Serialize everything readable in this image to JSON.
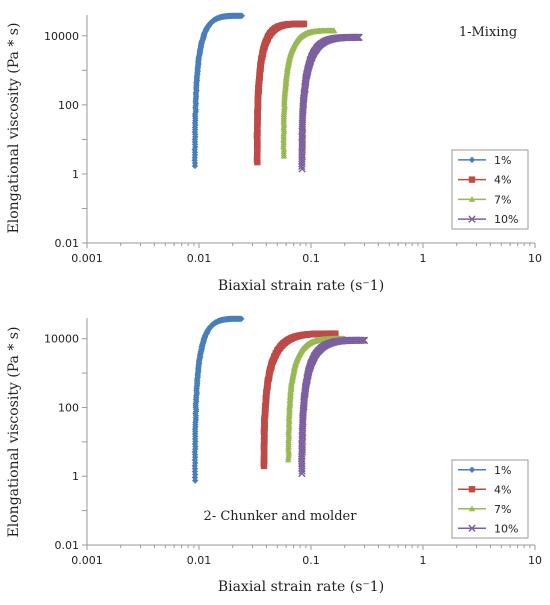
{
  "chart_data": [
    {
      "type": "scatter",
      "annotation": "1-Mixing",
      "xlabel": "Biaxial strain rate (s⁻1)",
      "ylabel": "Elongational viscosity (Pa * s)",
      "xscale": "log",
      "yscale": "log",
      "xlim": [
        0.001,
        10
      ],
      "ylim": [
        0.01,
        40000
      ],
      "x_ticks": [
        "0.001",
        "0.01",
        "0.1",
        "1",
        "10"
      ],
      "y_ticks": [
        "0.01",
        "1",
        "100",
        "10000"
      ],
      "legend_position": "bottom-right",
      "series": [
        {
          "name": "1%",
          "color": "#4a7ebb",
          "marker": "diamond",
          "x_min": 0.0092,
          "x_max": 0.024,
          "y_min": 1.7,
          "y_max": 38000
        },
        {
          "name": "4%",
          "color": "#be4b48",
          "marker": "square",
          "x_min": 0.033,
          "x_max": 0.086,
          "y_min": 2.2,
          "y_max": 22000
        },
        {
          "name": "7%",
          "color": "#98b954",
          "marker": "triangle",
          "x_min": 0.057,
          "x_max": 0.16,
          "y_min": 3.3,
          "y_max": 14000
        },
        {
          "name": "10%",
          "color": "#7d60a0",
          "marker": "x",
          "x_min": 0.083,
          "x_max": 0.27,
          "y_min": 1.4,
          "y_max": 9000
        }
      ]
    },
    {
      "type": "scatter",
      "annotation": "2- Chunker and molder",
      "xlabel": "Biaxial strain rate (s⁻1)",
      "ylabel": "Elongational viscosity (Pa * s)",
      "xscale": "log",
      "yscale": "log",
      "xlim": [
        0.001,
        10
      ],
      "ylim": [
        0.01,
        40000
      ],
      "x_ticks": [
        "0.001",
        "0.01",
        "0.1",
        "1",
        "10"
      ],
      "y_ticks": [
        "0.01",
        "1",
        "100",
        "10000"
      ],
      "legend_position": "bottom-right",
      "series": [
        {
          "name": "1%",
          "color": "#4a7ebb",
          "marker": "diamond",
          "x_min": 0.0092,
          "x_max": 0.024,
          "y_min": 0.75,
          "y_max": 38000
        },
        {
          "name": "4%",
          "color": "#be4b48",
          "marker": "square",
          "x_min": 0.038,
          "x_max": 0.165,
          "y_min": 2.0,
          "y_max": 14000
        },
        {
          "name": "7%",
          "color": "#98b954",
          "marker": "triangle",
          "x_min": 0.063,
          "x_max": 0.2,
          "y_min": 3.0,
          "y_max": 10000
        },
        {
          "name": "10%",
          "color": "#7d60a0",
          "marker": "x",
          "x_min": 0.083,
          "x_max": 0.3,
          "y_min": 1.2,
          "y_max": 9000
        }
      ]
    }
  ]
}
